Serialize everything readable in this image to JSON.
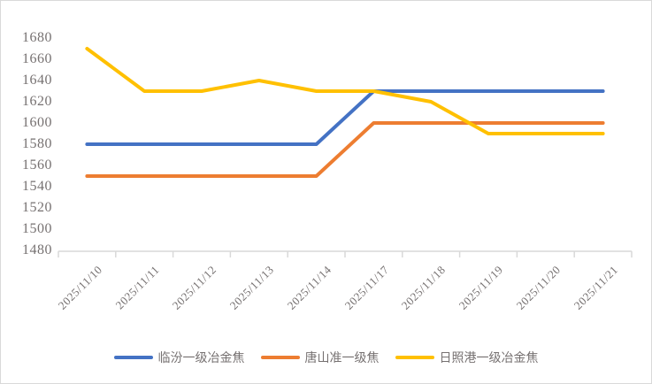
{
  "chart_data": {
    "type": "line",
    "title": "",
    "xlabel": "",
    "ylabel": "",
    "categories": [
      "2025/11/10",
      "2025/11/11",
      "2025/11/12",
      "2025/11/13",
      "2025/11/14",
      "2025/11/17",
      "2025/11/18",
      "2025/11/19",
      "2025/11/20",
      "2025/11/21"
    ],
    "series": [
      {
        "name": "临汾一级冶金焦",
        "color": "#4472C4",
        "values": [
          1580,
          1580,
          1580,
          1580,
          1580,
          1630,
          1630,
          1630,
          1630,
          1630
        ]
      },
      {
        "name": "唐山准一级焦",
        "color": "#ED7D31",
        "values": [
          1550,
          1550,
          1550,
          1550,
          1550,
          1600,
          1600,
          1600,
          1600,
          1600
        ]
      },
      {
        "name": "日照港一级冶金焦",
        "color": "#FFC000",
        "values": [
          1670,
          1630,
          1630,
          1640,
          1630,
          1630,
          1620,
          1590,
          1590,
          1590
        ]
      }
    ],
    "y_ticks": [
      1680,
      1660,
      1640,
      1620,
      1600,
      1580,
      1560,
      1540,
      1520,
      1500,
      1480
    ],
    "ylim": [
      1480,
      1680
    ],
    "grid": false,
    "legend_position": "bottom",
    "axis_color": "#D9D9D9",
    "label_color": "#767171",
    "frame_border_color": "#D9D9D9"
  }
}
